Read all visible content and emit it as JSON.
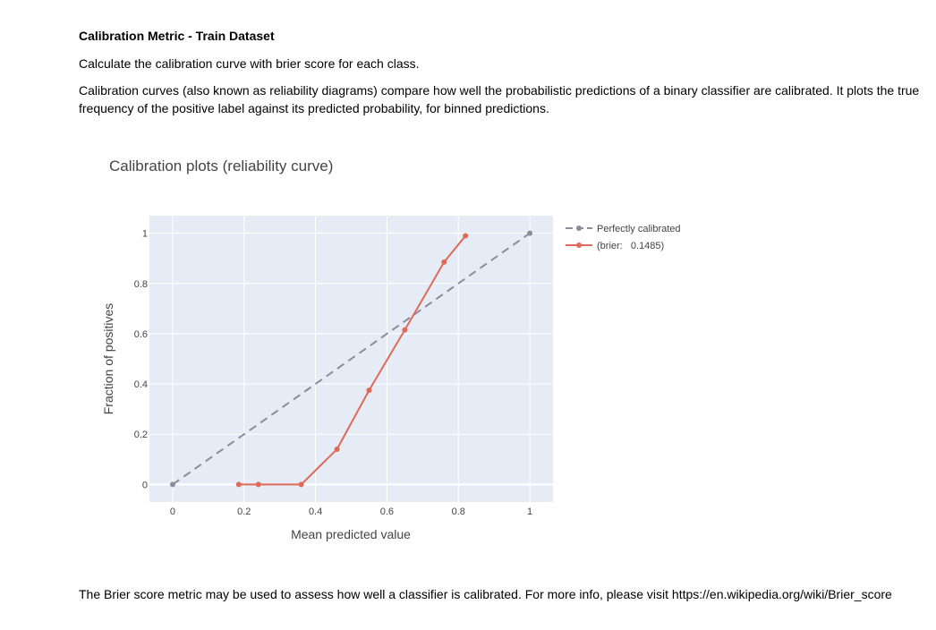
{
  "section": {
    "title": "Calibration Metric - Train Dataset",
    "intro": "Calculate the calibration curve with brier score for each class.",
    "description": "Calibration curves (also known as reliability diagrams) compare how well the probabilistic predictions of a binary classifier are calibrated. It plots the true frequency of the positive label against its predicted probability, for binned predictions.",
    "footer": "The Brier score metric may be used to assess how well a classifier is calibrated. For more info, please visit https://en.wikipedia.org/wiki/Brier_score"
  },
  "chart_data": {
    "type": "line",
    "title": "Calibration plots (reliability curve)",
    "xlabel": "Mean predicted value",
    "ylabel": "Fraction of positives",
    "xlim": [
      -0.065,
      1.065
    ],
    "ylim": [
      -0.07,
      1.07
    ],
    "xticks": [
      0,
      0.2,
      0.4,
      0.6,
      0.8,
      1
    ],
    "xtick_labels": [
      "0",
      "0.2",
      "0.4",
      "0.6",
      "0.8",
      "1"
    ],
    "yticks": [
      0,
      0.2,
      0.4,
      0.6,
      0.8,
      1
    ],
    "ytick_labels": [
      "0",
      "0.2",
      "0.4",
      "0.6",
      "0.8",
      "1"
    ],
    "grid": true,
    "legend_position": "top-right-outside",
    "plot_background": "#e5ecf6",
    "series": [
      {
        "name": "Perfectly calibrated",
        "color": "#8c8c9a",
        "dash": "dash",
        "x": [
          0,
          1
        ],
        "y": [
          0,
          1
        ]
      },
      {
        "name": "(brier:   0.1485)",
        "color": "#de6a5a",
        "dash": "solid",
        "x": [
          0.185,
          0.24,
          0.36,
          0.46,
          0.55,
          0.65,
          0.76,
          0.82
        ],
        "y": [
          0,
          0,
          0,
          0.14,
          0.375,
          0.615,
          0.885,
          0.99
        ]
      }
    ]
  }
}
